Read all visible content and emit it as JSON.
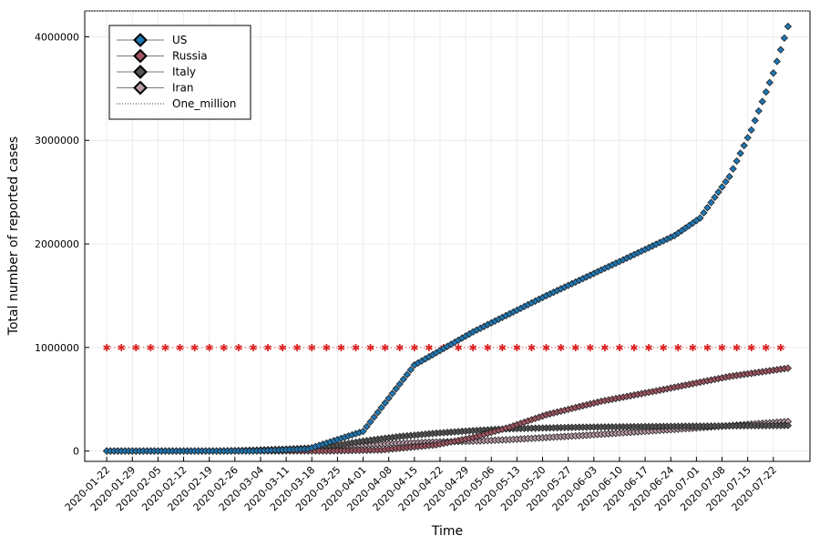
{
  "chart_data": {
    "type": "scatter",
    "title": "",
    "xlabel": "Time",
    "ylabel": "Total number of reported cases",
    "ylim": [
      -100000,
      4250000
    ],
    "yticks": [
      0,
      1000000,
      2000000,
      3000000,
      4000000
    ],
    "ytick_labels": [
      "0",
      "1000000",
      "2000000",
      "3000000",
      "4000000"
    ],
    "x_start_date": "2020-01-22",
    "x_days": 186,
    "xlim_days": [
      -6,
      192
    ],
    "xtick_days": [
      0,
      7,
      14,
      21,
      28,
      35,
      42,
      49,
      56,
      63,
      70,
      77,
      84,
      91,
      98,
      105,
      112,
      119,
      126,
      133,
      140,
      147,
      154,
      161,
      168,
      175,
      182
    ],
    "xtick_labels": [
      "2020-01-22",
      "2020-01-29",
      "2020-02-05",
      "2020-02-12",
      "2020-02-19",
      "2020-02-26",
      "2020-03-04",
      "2020-03-11",
      "2020-03-18",
      "2020-03-25",
      "2020-04-01",
      "2020-04-08",
      "2020-04-15",
      "2020-04-22",
      "2020-04-29",
      "2020-05-06",
      "2020-05-13",
      "2020-05-20",
      "2020-05-27",
      "2020-06-03",
      "2020-06-10",
      "2020-06-17",
      "2020-06-24",
      "2020-07-01",
      "2020-07-08",
      "2020-07-15",
      "2020-07-22"
    ],
    "grid": true,
    "legend_position": "top-left",
    "series": [
      {
        "name": "US",
        "color": "#1f77b4",
        "marker": "diamond",
        "anchors_day": [
          0,
          40,
          55,
          70,
          84,
          100,
          120,
          140,
          155,
          162,
          170,
          176,
          182,
          186
        ],
        "anchors_value": [
          0,
          0,
          20000,
          190000,
          830000,
          1150000,
          1500000,
          1830000,
          2080000,
          2250000,
          2650000,
          3100000,
          3650000,
          4100000
        ]
      },
      {
        "name": "Russia",
        "color": "#a05560",
        "marker": "diamond",
        "anchors_day": [
          0,
          60,
          75,
          90,
          100,
          110,
          120,
          135,
          150,
          170,
          186
        ],
        "anchors_value": [
          0,
          0,
          10000,
          60000,
          130000,
          230000,
          350000,
          480000,
          580000,
          720000,
          800000
        ]
      },
      {
        "name": "Italy",
        "color": "#555555",
        "marker": "diamond",
        "anchors_day": [
          0,
          30,
          40,
          50,
          60,
          70,
          80,
          90,
          100,
          110,
          130,
          160,
          186
        ],
        "anchors_value": [
          0,
          0,
          1500,
          12000,
          41000,
          96000,
          140000,
          172000,
          197000,
          215000,
          230000,
          240000,
          246000
        ]
      },
      {
        "name": "Iran",
        "color": "#b89aa8",
        "marker": "diamond",
        "anchors_day": [
          0,
          30,
          40,
          50,
          60,
          70,
          80,
          90,
          100,
          110,
          130,
          160,
          186
        ],
        "anchors_value": [
          0,
          0,
          8000,
          20000,
          35000,
          58000,
          74000,
          88000,
          95000,
          110000,
          150000,
          220000,
          285000
        ]
      },
      {
        "name": "One_million",
        "color": "#dd2222",
        "marker": "star",
        "line": "dotted",
        "constant": 1000000,
        "every_days": 4
      }
    ]
  }
}
